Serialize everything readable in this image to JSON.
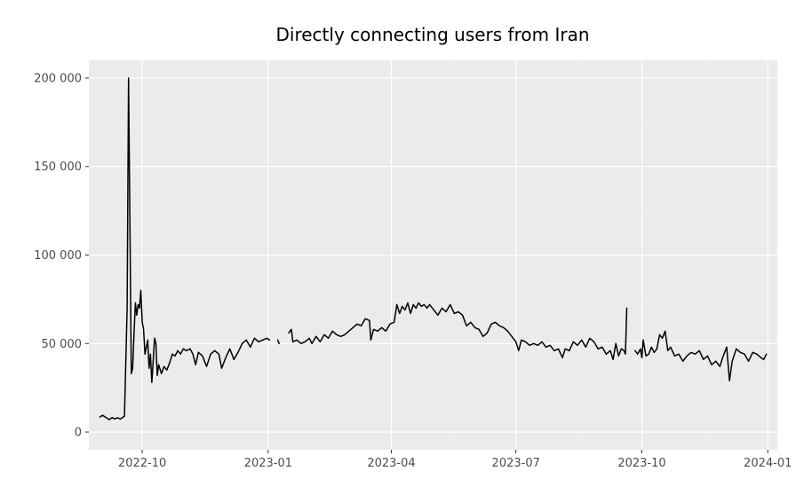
{
  "chart_data": {
    "type": "line",
    "title": "Directly connecting users from Iran",
    "xlabel": "",
    "ylabel": "",
    "x_ticks": [
      "2022-10-01",
      "2023-01-01",
      "2023-04-01",
      "2023-07-01",
      "2023-10-01",
      "2024-01-01"
    ],
    "x_tick_labels": [
      "2022-10",
      "2023-01",
      "2023-04",
      "2023-07",
      "2023-10",
      "2024-01"
    ],
    "y_ticks": [
      0,
      50000,
      100000,
      150000,
      200000
    ],
    "y_tick_labels": [
      "0",
      "50 000",
      "100 000",
      "150 000",
      "200 000"
    ],
    "xlim": [
      "2022-08-23",
      "2024-01-08"
    ],
    "ylim": [
      -10000,
      210000
    ],
    "grid": true,
    "background": "#ebebeb",
    "line_color": "#000000",
    "segments": [
      [
        [
          "2022-08-31",
          8500
        ],
        [
          "2022-09-02",
          9500
        ],
        [
          "2022-09-05",
          8000
        ],
        [
          "2022-09-07",
          7000
        ],
        [
          "2022-09-09",
          8200
        ],
        [
          "2022-09-11",
          7400
        ],
        [
          "2022-09-13",
          8100
        ],
        [
          "2022-09-15",
          7300
        ],
        [
          "2022-09-18",
          9000
        ],
        [
          "2022-09-20",
          70000
        ],
        [
          "2022-09-21",
          200000
        ],
        [
          "2022-09-22",
          120000
        ],
        [
          "2022-09-23",
          33000
        ],
        [
          "2022-09-24",
          36000
        ],
        [
          "2022-09-25",
          55000
        ],
        [
          "2022-09-26",
          73000
        ],
        [
          "2022-09-27",
          66000
        ],
        [
          "2022-09-28",
          72000
        ],
        [
          "2022-09-29",
          70000
        ],
        [
          "2022-09-30",
          80000
        ],
        [
          "2022-10-01",
          62000
        ],
        [
          "2022-10-02",
          58000
        ],
        [
          "2022-10-03",
          44000
        ],
        [
          "2022-10-05",
          52000
        ],
        [
          "2022-10-06",
          36000
        ],
        [
          "2022-10-07",
          44000
        ],
        [
          "2022-10-08",
          28000
        ],
        [
          "2022-10-09",
          40000
        ],
        [
          "2022-10-10",
          53000
        ],
        [
          "2022-10-11",
          50000
        ],
        [
          "2022-10-12",
          32000
        ],
        [
          "2022-10-13",
          38000
        ],
        [
          "2022-10-15",
          33000
        ],
        [
          "2022-10-17",
          37000
        ],
        [
          "2022-10-19",
          35000
        ],
        [
          "2022-10-21",
          39000
        ],
        [
          "2022-10-23",
          44000
        ],
        [
          "2022-10-25",
          43000
        ],
        [
          "2022-10-27",
          46000
        ],
        [
          "2022-10-29",
          44000
        ],
        [
          "2022-10-31",
          47000
        ],
        [
          "2022-11-02",
          46000
        ],
        [
          "2022-11-05",
          47000
        ],
        [
          "2022-11-07",
          44000
        ],
        [
          "2022-11-09",
          38000
        ],
        [
          "2022-11-11",
          45000
        ],
        [
          "2022-11-14",
          43000
        ],
        [
          "2022-11-17",
          37000
        ],
        [
          "2022-11-20",
          44000
        ],
        [
          "2022-11-23",
          46000
        ],
        [
          "2022-11-26",
          44000
        ],
        [
          "2022-11-28",
          36000
        ],
        [
          "2022-12-01",
          42000
        ],
        [
          "2022-12-04",
          47000
        ],
        [
          "2022-12-07",
          41000
        ],
        [
          "2022-12-10",
          45000
        ],
        [
          "2022-12-13",
          50000
        ],
        [
          "2022-12-16",
          52000
        ],
        [
          "2022-12-19",
          48000
        ],
        [
          "2022-12-22",
          53000
        ],
        [
          "2022-12-25",
          51000
        ],
        [
          "2022-12-28",
          52000
        ],
        [
          "2022-12-31",
          53000
        ],
        [
          "2023-01-02",
          52000
        ]
      ],
      [
        [
          "2023-01-08",
          52000
        ],
        [
          "2023-01-09",
          50000
        ]
      ],
      [
        [
          "2023-01-16",
          56000
        ],
        [
          "2023-01-18",
          58000
        ],
        [
          "2023-01-19",
          51000
        ],
        [
          "2023-01-22",
          52000
        ],
        [
          "2023-01-25",
          50000
        ],
        [
          "2023-01-28",
          51000
        ],
        [
          "2023-01-31",
          53000
        ],
        [
          "2023-02-02",
          50000
        ],
        [
          "2023-02-05",
          54000
        ],
        [
          "2023-02-08",
          51000
        ],
        [
          "2023-02-11",
          55000
        ],
        [
          "2023-02-14",
          53000
        ],
        [
          "2023-02-17",
          57000
        ],
        [
          "2023-02-20",
          55000
        ],
        [
          "2023-02-23",
          54000
        ],
        [
          "2023-02-26",
          55000
        ],
        [
          "2023-03-01",
          57000
        ],
        [
          "2023-03-04",
          59000
        ],
        [
          "2023-03-07",
          61000
        ],
        [
          "2023-03-10",
          60000
        ],
        [
          "2023-03-13",
          64000
        ],
        [
          "2023-03-16",
          63000
        ],
        [
          "2023-03-17",
          52000
        ],
        [
          "2023-03-19",
          58000
        ],
        [
          "2023-03-22",
          57000
        ],
        [
          "2023-03-25",
          59000
        ],
        [
          "2023-03-28",
          57000
        ],
        [
          "2023-03-31",
          61000
        ],
        [
          "2023-04-03",
          62000
        ],
        [
          "2023-04-05",
          72000
        ],
        [
          "2023-04-07",
          67000
        ],
        [
          "2023-04-09",
          71000
        ],
        [
          "2023-04-11",
          69000
        ],
        [
          "2023-04-13",
          73000
        ],
        [
          "2023-04-15",
          67000
        ],
        [
          "2023-04-17",
          72000
        ],
        [
          "2023-04-19",
          70000
        ],
        [
          "2023-04-21",
          73000
        ],
        [
          "2023-04-23",
          71000
        ],
        [
          "2023-04-25",
          72000
        ],
        [
          "2023-04-27",
          70000
        ],
        [
          "2023-04-29",
          72000
        ],
        [
          "2023-05-02",
          69000
        ],
        [
          "2023-05-05",
          66000
        ],
        [
          "2023-05-08",
          70000
        ],
        [
          "2023-05-11",
          68000
        ],
        [
          "2023-05-14",
          72000
        ],
        [
          "2023-05-17",
          67000
        ],
        [
          "2023-05-20",
          68000
        ],
        [
          "2023-05-23",
          66000
        ],
        [
          "2023-05-26",
          60000
        ],
        [
          "2023-05-29",
          62000
        ],
        [
          "2023-06-01",
          59000
        ],
        [
          "2023-06-04",
          58000
        ],
        [
          "2023-06-07",
          54000
        ],
        [
          "2023-06-10",
          56000
        ],
        [
          "2023-06-13",
          61000
        ],
        [
          "2023-06-16",
          62000
        ],
        [
          "2023-06-19",
          60000
        ],
        [
          "2023-06-22",
          59000
        ],
        [
          "2023-06-25",
          57000
        ],
        [
          "2023-06-28",
          54000
        ],
        [
          "2023-07-01",
          51000
        ],
        [
          "2023-07-03",
          46000
        ],
        [
          "2023-07-05",
          52000
        ],
        [
          "2023-07-08",
          51000
        ],
        [
          "2023-07-11",
          49000
        ],
        [
          "2023-07-14",
          50000
        ],
        [
          "2023-07-17",
          49000
        ],
        [
          "2023-07-20",
          51000
        ],
        [
          "2023-07-23",
          48000
        ],
        [
          "2023-07-26",
          49000
        ],
        [
          "2023-07-29",
          46000
        ],
        [
          "2023-08-01",
          47000
        ],
        [
          "2023-08-04",
          42000
        ],
        [
          "2023-08-06",
          47000
        ],
        [
          "2023-08-09",
          46000
        ],
        [
          "2023-08-12",
          51000
        ],
        [
          "2023-08-15",
          49000
        ],
        [
          "2023-08-18",
          52000
        ],
        [
          "2023-08-21",
          48000
        ],
        [
          "2023-08-24",
          53000
        ],
        [
          "2023-08-27",
          51000
        ],
        [
          "2023-08-30",
          47000
        ],
        [
          "2023-09-02",
          48000
        ],
        [
          "2023-09-05",
          44000
        ],
        [
          "2023-09-08",
          46000
        ],
        [
          "2023-09-10",
          41000
        ],
        [
          "2023-09-12",
          50000
        ],
        [
          "2023-09-14",
          43000
        ],
        [
          "2023-09-16",
          47000
        ],
        [
          "2023-09-18",
          46000
        ],
        [
          "2023-09-19",
          44000
        ],
        [
          "2023-09-20",
          70000
        ]
      ],
      [
        [
          "2023-09-26",
          46000
        ],
        [
          "2023-09-28",
          44000
        ],
        [
          "2023-09-30",
          47000
        ],
        [
          "2023-10-01",
          42000
        ],
        [
          "2023-10-02",
          52000
        ],
        [
          "2023-10-04",
          43000
        ],
        [
          "2023-10-06",
          44000
        ],
        [
          "2023-10-08",
          48000
        ],
        [
          "2023-10-10",
          45000
        ],
        [
          "2023-10-12",
          47000
        ],
        [
          "2023-10-14",
          55000
        ],
        [
          "2023-10-16",
          53000
        ],
        [
          "2023-10-18",
          57000
        ],
        [
          "2023-10-20",
          46000
        ],
        [
          "2023-10-22",
          48000
        ],
        [
          "2023-10-25",
          43000
        ],
        [
          "2023-10-28",
          44000
        ],
        [
          "2023-10-31",
          40000
        ],
        [
          "2023-11-03",
          43000
        ],
        [
          "2023-11-06",
          45000
        ],
        [
          "2023-11-09",
          44000
        ],
        [
          "2023-11-12",
          46000
        ],
        [
          "2023-11-15",
          41000
        ],
        [
          "2023-11-18",
          43000
        ],
        [
          "2023-11-21",
          38000
        ],
        [
          "2023-11-24",
          40000
        ],
        [
          "2023-11-27",
          37000
        ],
        [
          "2023-11-29",
          42000
        ],
        [
          "2023-12-02",
          48000
        ],
        [
          "2023-12-04",
          29000
        ],
        [
          "2023-12-06",
          40000
        ],
        [
          "2023-12-09",
          47000
        ],
        [
          "2023-12-12",
          45000
        ],
        [
          "2023-12-15",
          44000
        ],
        [
          "2023-12-18",
          40000
        ],
        [
          "2023-12-21",
          45000
        ],
        [
          "2023-12-24",
          44000
        ],
        [
          "2023-12-27",
          42000
        ],
        [
          "2023-12-29",
          41000
        ],
        [
          "2023-12-31",
          44000
        ]
      ]
    ]
  }
}
